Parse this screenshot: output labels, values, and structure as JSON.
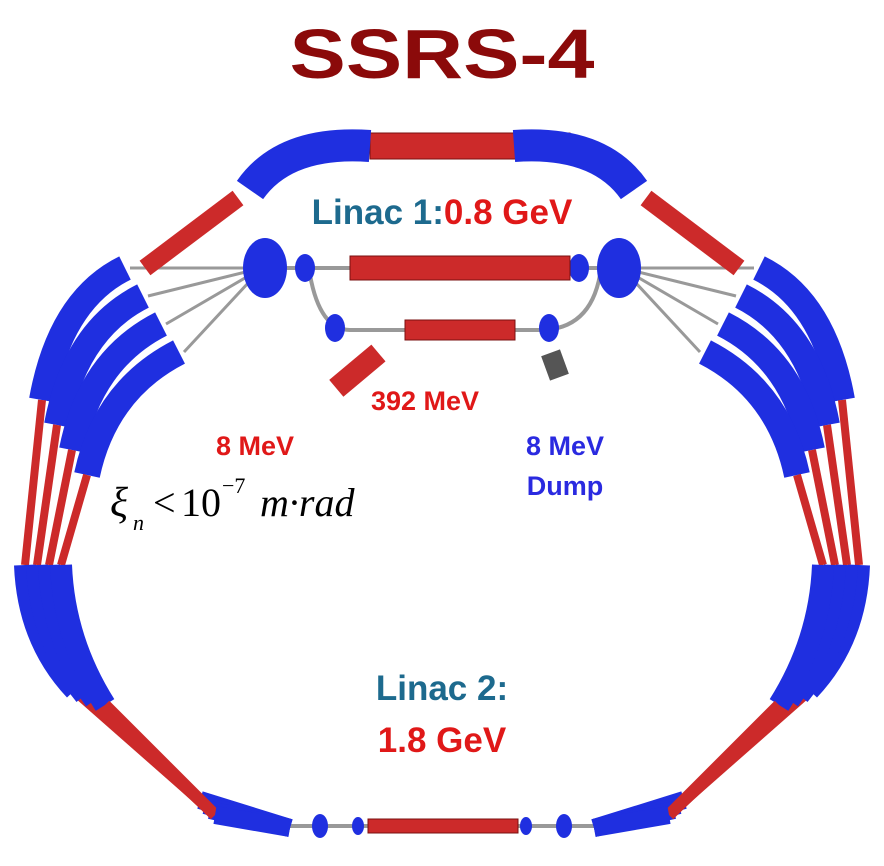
{
  "title": "SSRS-4",
  "linac1": {
    "label": "Linac 1:",
    "energy": "0.8 GeV"
  },
  "injector": {
    "energy": "392 MeV"
  },
  "injection": {
    "energy": "8 MeV"
  },
  "dump": {
    "energy": "8 MeV",
    "label": "Dump"
  },
  "formula": {
    "symbol": "ξ",
    "subscript": "n",
    "relation": "<",
    "base": "10",
    "exponent": "−7",
    "unit": "m·rad"
  },
  "linac2": {
    "label": "Linac 2:",
    "energy": "1.8 GeV"
  }
}
